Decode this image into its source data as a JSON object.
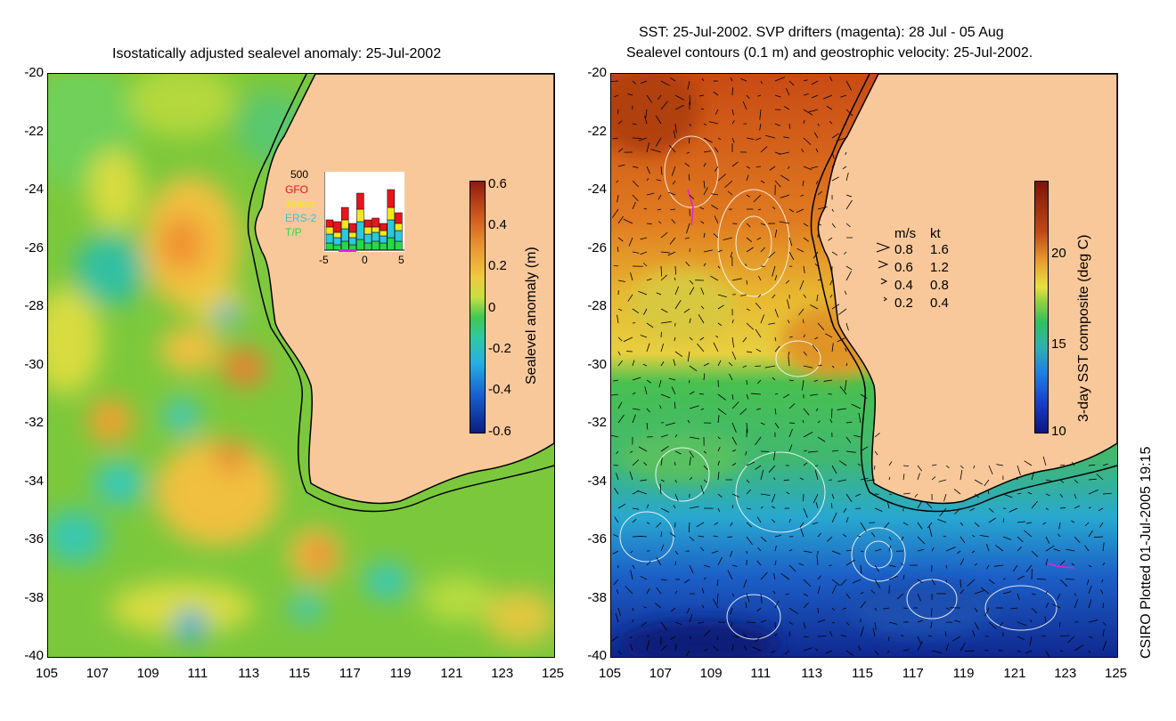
{
  "left_panel": {
    "title": "Isostatically adjusted sealevel anomaly: 25-Jul-2002",
    "x_ticks": [
      "105",
      "107",
      "109",
      "111",
      "113",
      "115",
      "117",
      "119",
      "121",
      "123",
      "125"
    ],
    "y_ticks": [
      "-20",
      "-22",
      "-24",
      "-26",
      "-28",
      "-30",
      "-32",
      "-34",
      "-36",
      "-38",
      "-40"
    ],
    "colorbar": {
      "label": "Sealevel anomaly (m)",
      "ticks": [
        "0.6",
        "0.4",
        "0.2",
        "0",
        "-0.2",
        "-0.4",
        "-0.6"
      ]
    },
    "inset": {
      "ymax_label": "500",
      "series": [
        {
          "name": "GFO",
          "color": "#e8141c"
        },
        {
          "name": "Jason",
          "color": "#f4e81c"
        },
        {
          "name": "ERS-2",
          "color": "#2cc8e0"
        },
        {
          "name": "T/P",
          "color": "#28d848"
        }
      ],
      "x_ticks": [
        "-5",
        "0",
        "5"
      ]
    }
  },
  "right_panel": {
    "title_line1": "SST: 25-Jul-2002. SVP drifters (magenta): 28 Jul - 05 Aug",
    "title_line2": "Sealevel contours (0.1 m) and geostrophic velocity: 25-Jul-2002.",
    "x_ticks": [
      "105",
      "107",
      "109",
      "111",
      "113",
      "115",
      "117",
      "119",
      "121",
      "123",
      "125"
    ],
    "y_ticks": [
      "-20",
      "-22",
      "-24",
      "-26",
      "-28",
      "-30",
      "-32",
      "-34",
      "-36",
      "-38",
      "-40"
    ],
    "colorbar": {
      "label": "3-day SST composite (deg C)",
      "ticks": [
        "20",
        "15",
        "10"
      ]
    },
    "velocity_legend": {
      "header_ms": "m/s",
      "header_kt": "kt",
      "rows": [
        {
          "ms": "0.8",
          "kt": "1.6"
        },
        {
          "ms": "0.6",
          "kt": "1.2"
        },
        {
          "ms": "0.4",
          "kt": "0.8"
        },
        {
          "ms": "0.2",
          "kt": "0.4"
        }
      ]
    }
  },
  "credit": "CSIRO Plotted 01-Jul-2005 19:15"
}
